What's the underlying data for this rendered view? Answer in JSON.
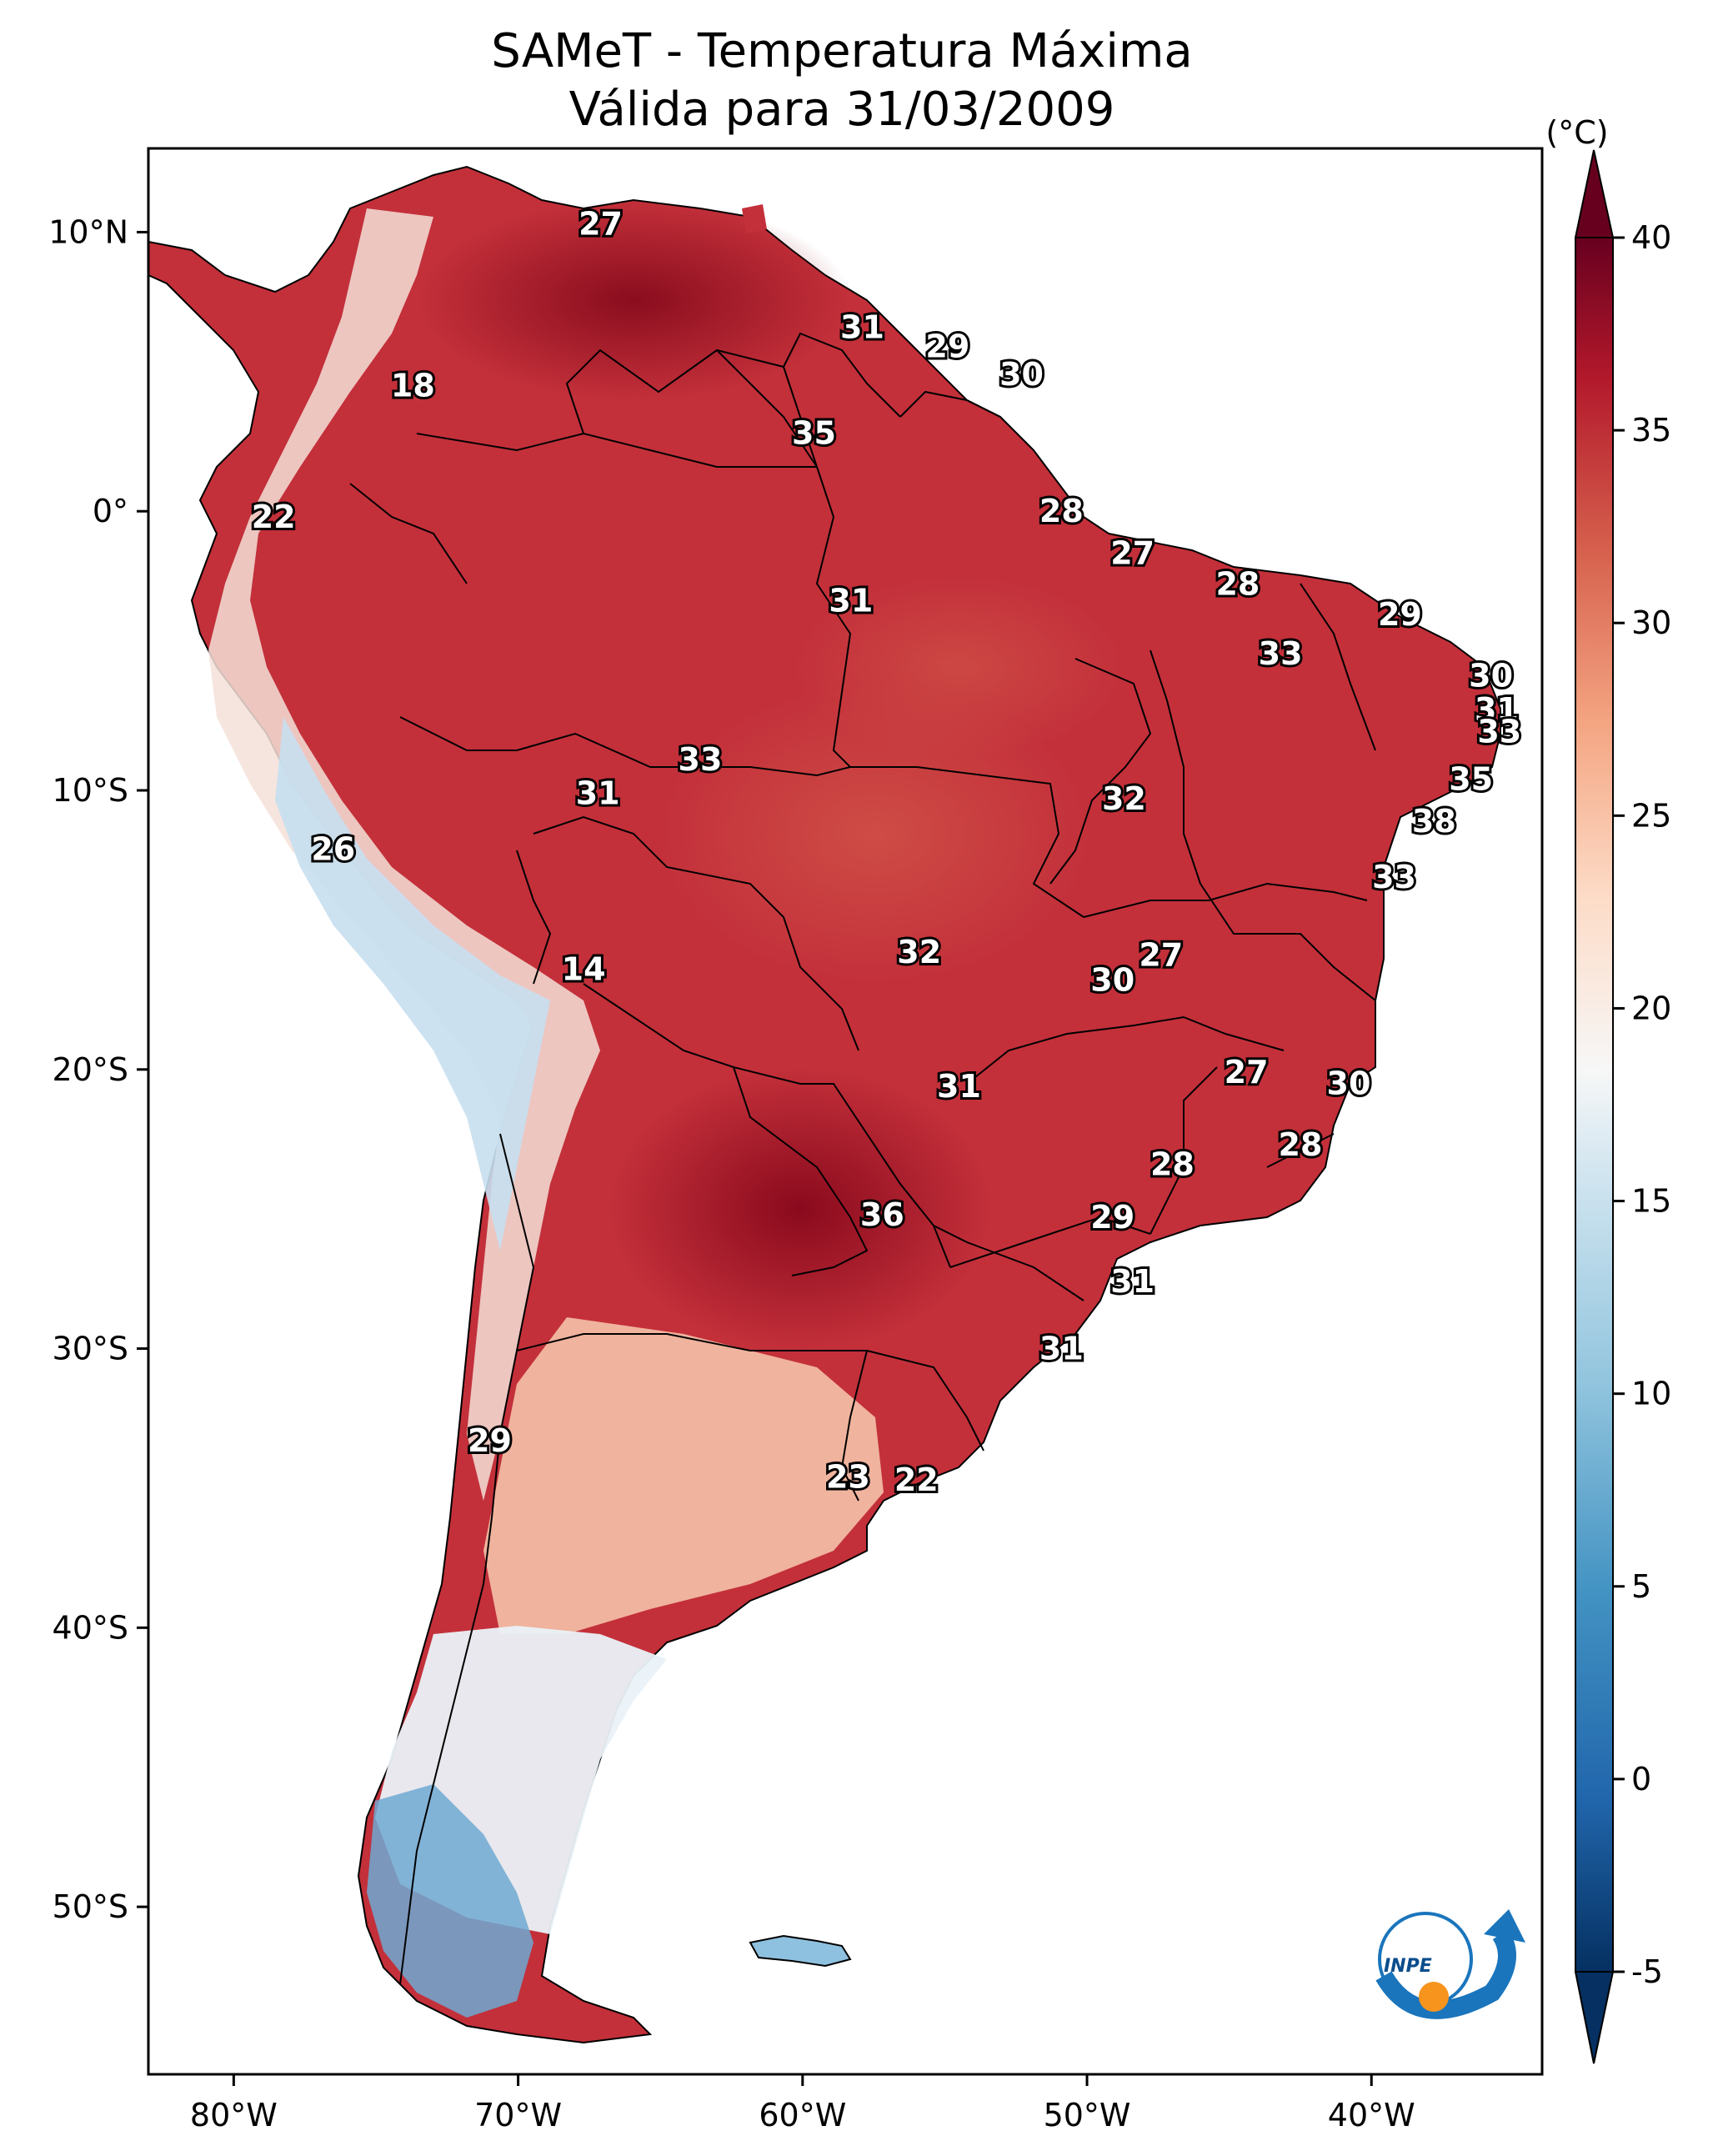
{
  "title": {
    "line1": "SAMeT - Temperatura Máxima",
    "line2": "Válida para 31/03/2009"
  },
  "map": {
    "region": "South America",
    "lon_range": [
      -83,
      -34
    ],
    "lat_range": [
      -56,
      13
    ],
    "x_ticks": [
      {
        "lon": -80,
        "label": "80°W"
      },
      {
        "lon": -70,
        "label": "70°W"
      },
      {
        "lon": -60,
        "label": "60°W"
      },
      {
        "lon": -50,
        "label": "50°W"
      },
      {
        "lon": -40,
        "label": "40°W"
      }
    ],
    "y_ticks": [
      {
        "lat": 10,
        "label": "10°N"
      },
      {
        "lat": 0,
        "label": "0°"
      },
      {
        "lat": -10,
        "label": "10°S"
      },
      {
        "lat": -20,
        "label": "20°S"
      },
      {
        "lat": -30,
        "label": "30°S"
      },
      {
        "lat": -40,
        "label": "40°S"
      },
      {
        "lat": -50,
        "label": "50°S"
      }
    ]
  },
  "colorbar": {
    "unit": "(°C)",
    "min": -5,
    "max": 40,
    "ticks": [
      "-5",
      "0",
      "5",
      "10",
      "15",
      "20",
      "25",
      "30",
      "35",
      "40"
    ],
    "colormap": "RdBu_r",
    "extend": "both"
  },
  "temperature_labels": [
    {
      "value": "27",
      "lon": -67.1,
      "lat": 10.3
    },
    {
      "value": "31",
      "lon": -57.9,
      "lat": 6.6
    },
    {
      "value": "29",
      "lon": -54.9,
      "lat": 5.9
    },
    {
      "value": "30",
      "lon": -52.3,
      "lat": 4.9
    },
    {
      "value": "18",
      "lon": -73.7,
      "lat": 4.5
    },
    {
      "value": "35",
      "lon": -59.6,
      "lat": 2.8
    },
    {
      "value": "28",
      "lon": -50.9,
      "lat": 0.0
    },
    {
      "value": "22",
      "lon": -78.6,
      "lat": -0.2
    },
    {
      "value": "27",
      "lon": -48.4,
      "lat": -1.5
    },
    {
      "value": "28",
      "lon": -44.7,
      "lat": -2.6
    },
    {
      "value": "31",
      "lon": -58.3,
      "lat": -3.2
    },
    {
      "value": "29",
      "lon": -39.0,
      "lat": -3.7
    },
    {
      "value": "33",
      "lon": -43.2,
      "lat": -5.1
    },
    {
      "value": "30",
      "lon": -35.8,
      "lat": -5.9
    },
    {
      "value": "31",
      "lon": -35.6,
      "lat": -7.1
    },
    {
      "value": "33",
      "lon": -35.5,
      "lat": -7.9
    },
    {
      "value": "33",
      "lon": -63.6,
      "lat": -8.9
    },
    {
      "value": "35",
      "lon": -36.5,
      "lat": -9.6
    },
    {
      "value": "31",
      "lon": -67.2,
      "lat": -10.1
    },
    {
      "value": "32",
      "lon": -48.7,
      "lat": -10.3
    },
    {
      "value": "38",
      "lon": -37.8,
      "lat": -11.1
    },
    {
      "value": "26",
      "lon": -76.5,
      "lat": -12.1
    },
    {
      "value": "33",
      "lon": -39.2,
      "lat": -13.1
    },
    {
      "value": "27",
      "lon": -47.4,
      "lat": -15.9
    },
    {
      "value": "32",
      "lon": -55.9,
      "lat": -15.8
    },
    {
      "value": "30",
      "lon": -49.1,
      "lat": -16.8
    },
    {
      "value": "14",
      "lon": -67.7,
      "lat": -16.4
    },
    {
      "value": "27",
      "lon": -44.4,
      "lat": -20.1
    },
    {
      "value": "30",
      "lon": -40.8,
      "lat": -20.5
    },
    {
      "value": "31",
      "lon": -54.5,
      "lat": -20.6
    },
    {
      "value": "28",
      "lon": -42.5,
      "lat": -22.7
    },
    {
      "value": "28",
      "lon": -47.0,
      "lat": -23.4
    },
    {
      "value": "36",
      "lon": -57.2,
      "lat": -25.2
    },
    {
      "value": "29",
      "lon": -49.1,
      "lat": -25.3
    },
    {
      "value": "31",
      "lon": -48.4,
      "lat": -27.6
    },
    {
      "value": "31",
      "lon": -50.9,
      "lat": -30.0
    },
    {
      "value": "29",
      "lon": -71.0,
      "lat": -33.3
    },
    {
      "value": "23",
      "lon": -58.4,
      "lat": -34.6
    },
    {
      "value": "22",
      "lon": -56.0,
      "lat": -34.7
    }
  ],
  "logo": {
    "text": "INPE",
    "colors": {
      "blue": "#1a75bc",
      "orange": "#f7941d"
    }
  }
}
